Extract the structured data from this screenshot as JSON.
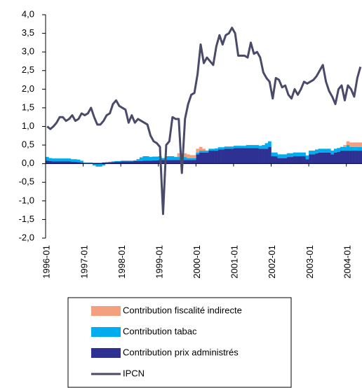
{
  "chart_data": {
    "type": "bar",
    "categories": [
      "1996-01",
      null,
      null,
      null,
      null,
      null,
      null,
      null,
      null,
      null,
      null,
      null,
      "1997-01",
      null,
      null,
      null,
      null,
      null,
      null,
      null,
      null,
      null,
      null,
      null,
      "1998-01",
      null,
      null,
      null,
      null,
      null,
      null,
      null,
      null,
      null,
      null,
      null,
      "1999-01",
      null,
      null,
      null,
      null,
      null,
      null,
      null,
      null,
      null,
      null,
      null,
      "2000-01",
      null,
      null,
      null,
      null,
      null,
      null,
      null,
      null,
      null,
      null,
      null,
      "2001-01",
      null,
      null,
      null,
      null,
      null,
      null,
      null,
      null,
      null,
      null,
      null,
      "2002-01",
      null,
      null,
      null,
      null,
      null,
      null,
      null,
      null,
      null,
      null,
      null,
      "2003-01",
      null,
      null,
      null,
      null,
      null,
      null,
      null,
      null,
      null,
      null,
      null,
      "2004-01",
      null,
      null,
      null,
      null
    ],
    "series": [
      {
        "name": "Contribution fiscalité indirecte",
        "color": "#f4a07f",
        "type": "bar",
        "values": [
          0,
          0,
          0,
          0,
          0,
          0,
          0,
          0,
          0,
          0,
          0,
          0,
          0,
          0,
          0,
          0,
          0,
          0,
          0,
          0,
          0,
          0,
          0,
          0,
          0,
          0,
          0,
          0,
          0,
          0,
          0,
          0,
          0,
          0,
          0,
          0,
          0,
          0,
          0,
          0,
          0,
          0,
          0.1,
          0.1,
          0.1,
          0.1,
          0.08,
          0.08,
          0.1,
          0.1,
          0.05,
          0,
          0,
          0,
          0,
          0,
          0,
          0,
          0,
          0,
          0,
          0,
          0,
          0,
          0,
          0,
          0,
          0,
          0,
          0,
          0,
          0,
          0,
          0,
          0,
          0,
          0,
          0,
          0,
          0,
          0,
          0,
          0,
          0,
          0,
          0,
          0,
          0,
          0,
          0,
          0,
          0,
          0,
          0,
          0,
          0.05,
          0.1,
          0.12,
          0.12,
          0.12,
          0.12
        ]
      },
      {
        "name": "Contribution tabac",
        "color": "#00aeef",
        "type": "bar",
        "values": [
          0.1,
          0.08,
          0.08,
          0.08,
          0.08,
          0.08,
          0.08,
          0.08,
          0.07,
          0.07,
          0.07,
          0.05,
          0.01,
          0.01,
          0.01,
          -0.05,
          -0.08,
          -0.08,
          -0.05,
          0.01,
          0.02,
          0.02,
          0.02,
          0.02,
          0.02,
          0.02,
          0.02,
          0.02,
          0.02,
          0.05,
          0.1,
          0.12,
          0.12,
          0.1,
          0.1,
          0.1,
          0.1,
          0.05,
          0.1,
          0.1,
          0.1,
          0.08,
          0.08,
          0.08,
          0.08,
          0.05,
          0.05,
          0.05,
          0.05,
          0.05,
          0.05,
          0.05,
          0.05,
          0.05,
          0.06,
          0.06,
          0.06,
          0.06,
          0.06,
          0.06,
          0.06,
          0.06,
          0.06,
          0.06,
          0.08,
          0.08,
          0.08,
          0.08,
          0.08,
          0.1,
          0.15,
          0.15,
          0.1,
          0.1,
          0.1,
          0.1,
          0.1,
          0.1,
          0.1,
          0.1,
          0.1,
          0.1,
          0.1,
          0.1,
          0.1,
          0.1,
          0.1,
          0.1,
          0.1,
          0.1,
          0.1,
          0.1,
          0.1,
          0.1,
          0.1,
          0.1,
          0.15,
          0.1,
          0.1,
          0.1,
          0.1
        ]
      },
      {
        "name": "Contribution prix administrés",
        "color": "#2e3192",
        "type": "bar",
        "values": [
          0.08,
          0.07,
          0.06,
          0.06,
          0.06,
          0.06,
          0.06,
          0.06,
          0.05,
          0.05,
          0.04,
          0.03,
          0.02,
          0.02,
          0.02,
          0.02,
          0.02,
          0.02,
          0.03,
          0.03,
          0.03,
          0.04,
          0.05,
          0.05,
          0.06,
          0.06,
          0.06,
          0.06,
          0.07,
          0.07,
          0.07,
          0.08,
          0.08,
          0.08,
          0.09,
          0.09,
          0.1,
          0.1,
          0.1,
          0.1,
          0.1,
          0.1,
          0.1,
          0.1,
          0.1,
          0.1,
          0.1,
          0.1,
          0.25,
          0.3,
          0.3,
          0.3,
          0.35,
          0.35,
          0.35,
          0.38,
          0.38,
          0.4,
          0.4,
          0.4,
          0.42,
          0.42,
          0.42,
          0.42,
          0.42,
          0.42,
          0.42,
          0.42,
          0.4,
          0.4,
          0.4,
          0.45,
          0.2,
          0.2,
          0.15,
          0.15,
          0.15,
          0.18,
          0.18,
          0.2,
          0.2,
          0.2,
          0.2,
          0.12,
          0.25,
          0.25,
          0.28,
          0.3,
          0.3,
          0.3,
          0.3,
          0.25,
          0.3,
          0.32,
          0.35,
          0.35,
          0.35,
          0.35,
          0.35,
          0.35,
          0.35
        ]
      },
      {
        "name": "IPCN",
        "color": "#4a4a6a",
        "type": "line",
        "values": [
          1.0,
          0.93,
          1.0,
          1.1,
          1.25,
          1.25,
          1.15,
          1.2,
          1.3,
          1.15,
          1.2,
          1.35,
          1.3,
          1.35,
          1.5,
          1.25,
          1.05,
          1.05,
          1.15,
          1.3,
          1.35,
          1.6,
          1.7,
          1.55,
          1.5,
          1.45,
          1.1,
          1.3,
          1.1,
          1.2,
          1.15,
          1.1,
          1.05,
          0.75,
          0.6,
          0.55,
          0.45,
          -1.35,
          0.5,
          0.6,
          1.25,
          1.2,
          1.2,
          -0.25,
          1.2,
          1.6,
          1.85,
          1.9,
          2.4,
          3.2,
          2.7,
          2.85,
          2.75,
          2.65,
          3.15,
          3.45,
          3.2,
          3.45,
          3.5,
          3.65,
          3.5,
          2.9,
          2.9,
          2.9,
          2.85,
          3.25,
          2.95,
          3.0,
          2.85,
          2.45,
          2.3,
          2.2,
          1.75,
          2.3,
          2.25,
          2.05,
          2.1,
          1.85,
          1.75,
          2.0,
          1.85,
          2.0,
          2.2,
          2.15,
          2.2,
          2.25,
          2.35,
          2.5,
          2.65,
          2.2,
          1.95,
          1.8,
          1.6,
          2.0,
          2.1,
          1.7,
          2.1,
          2.0,
          1.8,
          2.3,
          2.6
        ]
      }
    ],
    "ylim": [
      -2,
      4
    ],
    "yticks": [
      {
        "value": -2,
        "label": "-2,0"
      },
      {
        "value": -1.5,
        "label": "-1,5"
      },
      {
        "value": -1,
        "label": "-1,0"
      },
      {
        "value": -0.5,
        "label": "-0,5"
      },
      {
        "value": 0,
        "label": "0,0"
      },
      {
        "value": 0.5,
        "label": "0,5"
      },
      {
        "value": 1,
        "label": "1,0"
      },
      {
        "value": 1.5,
        "label": "1,5"
      },
      {
        "value": 2,
        "label": "2,0"
      },
      {
        "value": 2.5,
        "label": "2,5"
      },
      {
        "value": 3,
        "label": "3,0"
      },
      {
        "value": 3.5,
        "label": "3,5"
      },
      {
        "value": 4,
        "label": "4,0"
      }
    ],
    "grid": false
  }
}
